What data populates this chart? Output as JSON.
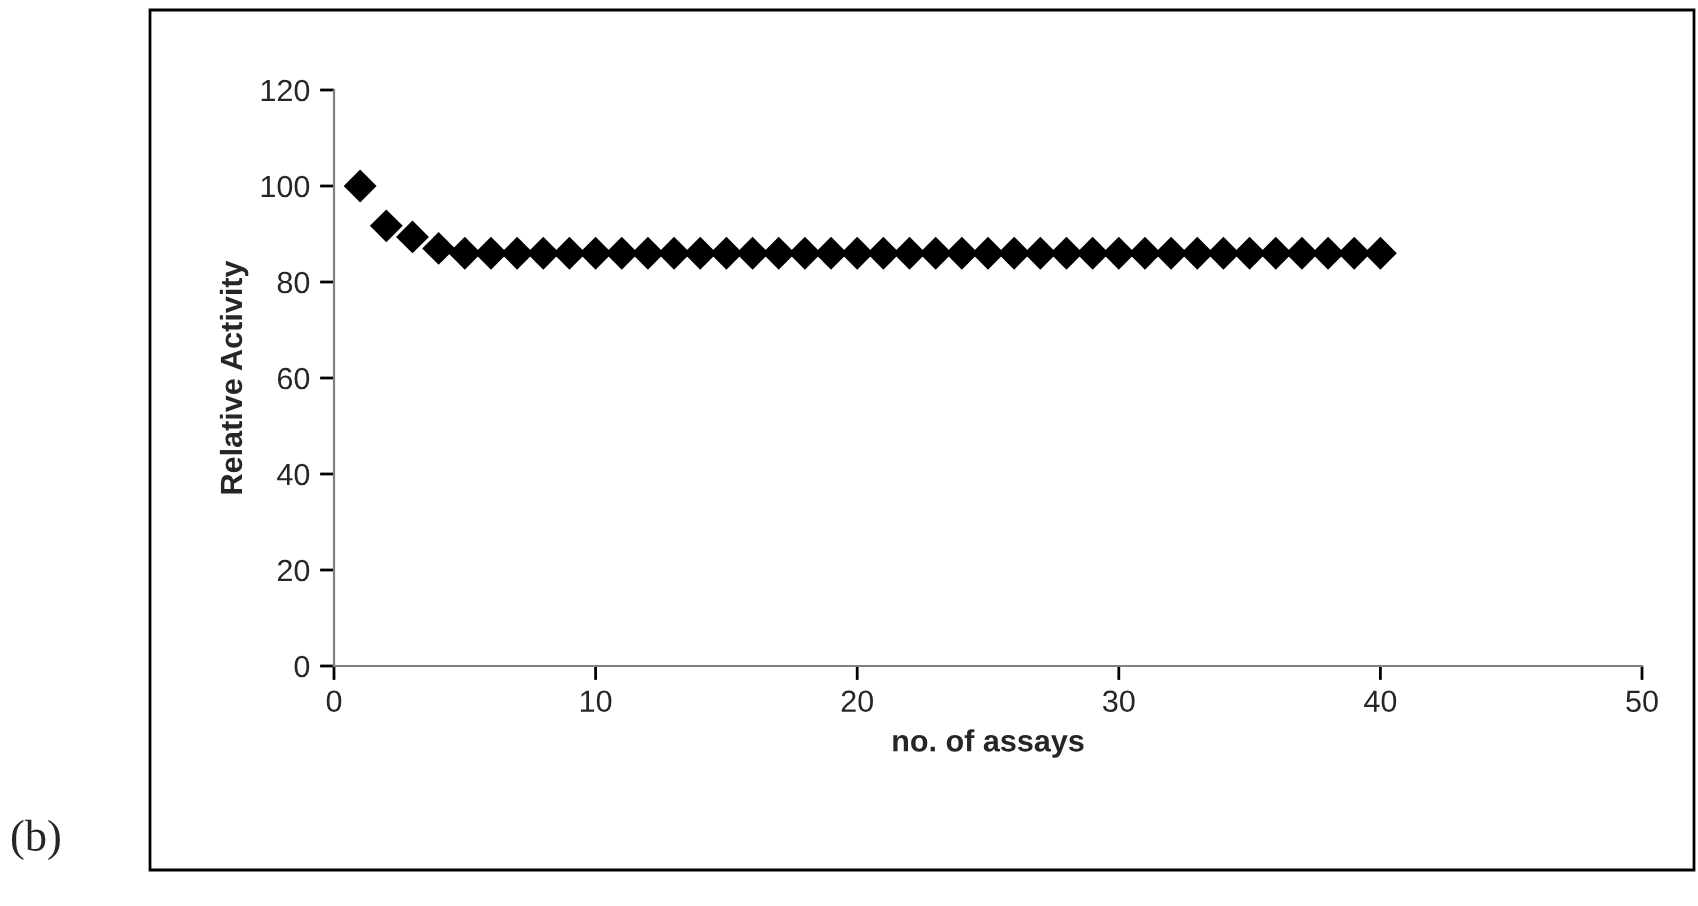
{
  "chart_data": {
    "type": "scatter",
    "xlabel": "no. of assays",
    "ylabel": "Relative Activity",
    "x": [
      1,
      2,
      3,
      4,
      5,
      6,
      7,
      8,
      9,
      10,
      11,
      12,
      13,
      14,
      15,
      16,
      17,
      18,
      19,
      20,
      21,
      22,
      23,
      24,
      25,
      26,
      27,
      28,
      29,
      30,
      31,
      32,
      33,
      34,
      35,
      36,
      37,
      38,
      39,
      40
    ],
    "values": [
      100,
      91.7,
      89.4,
      87,
      86,
      86,
      86,
      86,
      86,
      86,
      86,
      86,
      86,
      86,
      86,
      86,
      86,
      86,
      86,
      86,
      86,
      86,
      86,
      86,
      86,
      86,
      86,
      86,
      86,
      86,
      86,
      86,
      86,
      86,
      86,
      86,
      86,
      86,
      86,
      86
    ],
    "color": "#000000",
    "marker": "diamond",
    "xlim": [
      0,
      50
    ],
    "xticks": [
      0,
      10,
      20,
      30,
      40,
      50
    ],
    "ylim": [
      0,
      120
    ],
    "yticks": [
      0,
      20,
      40,
      60,
      80,
      100,
      120
    ],
    "grid": false,
    "annotations": [
      "(b)"
    ]
  }
}
